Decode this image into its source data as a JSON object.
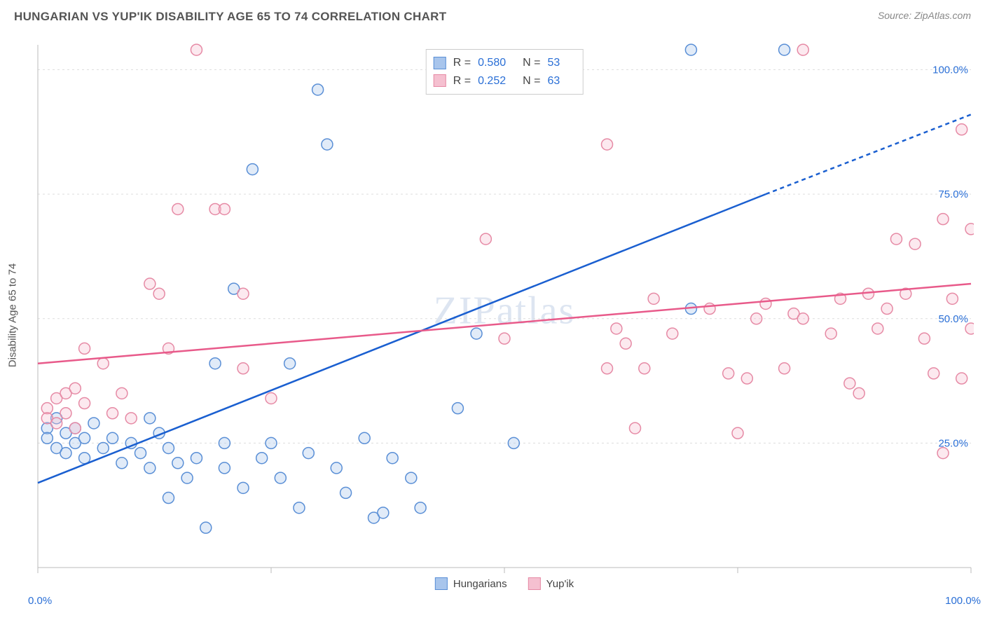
{
  "title": "HUNGARIAN VS YUP'IK DISABILITY AGE 65 TO 74 CORRELATION CHART",
  "source": "Source: ZipAtlas.com",
  "y_axis_label": "Disability Age 65 to 74",
  "watermark": "ZIPatlas",
  "chart": {
    "type": "scatter",
    "xlim": [
      0,
      100
    ],
    "ylim": [
      0,
      105
    ],
    "x_ticks": [
      0,
      100
    ],
    "x_tick_labels": [
      "0.0%",
      "100.0%"
    ],
    "y_ticks": [
      25,
      50,
      75,
      100
    ],
    "y_tick_labels": [
      "25.0%",
      "50.0%",
      "75.0%",
      "100.0%"
    ],
    "grid_color": "#dddddd",
    "axis_color": "#bbbbbb",
    "background_color": "#ffffff",
    "marker_radius": 8,
    "marker_stroke_width": 1.5,
    "marker_fill_opacity": 0.35,
    "line_width": 2.5,
    "dash_pattern": "6,5"
  },
  "series": [
    {
      "name": "Hungarians",
      "color_stroke": "#5a8fd6",
      "color_fill": "#a8c5ec",
      "line_color": "#1a5fd0",
      "stats": {
        "R": "0.580",
        "N": "53"
      },
      "trend": {
        "x1": 0,
        "y1": 17,
        "x2": 78,
        "y2": 75,
        "x2_dash": 100,
        "y2_dash": 91
      },
      "points": [
        [
          1,
          28
        ],
        [
          1,
          26
        ],
        [
          2,
          30
        ],
        [
          2,
          24
        ],
        [
          3,
          27
        ],
        [
          3,
          23
        ],
        [
          4,
          25
        ],
        [
          4,
          28
        ],
        [
          5,
          26
        ],
        [
          5,
          22
        ],
        [
          6,
          29
        ],
        [
          7,
          24
        ],
        [
          8,
          26
        ],
        [
          9,
          21
        ],
        [
          10,
          25
        ],
        [
          11,
          23
        ],
        [
          12,
          20
        ],
        [
          13,
          27
        ],
        [
          14,
          24
        ],
        [
          15,
          21
        ],
        [
          12,
          30
        ],
        [
          14,
          14
        ],
        [
          16,
          18
        ],
        [
          17,
          22
        ],
        [
          18,
          8
        ],
        [
          19,
          41
        ],
        [
          20,
          25
        ],
        [
          20,
          20
        ],
        [
          21,
          56
        ],
        [
          22,
          16
        ],
        [
          23,
          80
        ],
        [
          24,
          22
        ],
        [
          25,
          25
        ],
        [
          26,
          18
        ],
        [
          27,
          41
        ],
        [
          28,
          12
        ],
        [
          29,
          23
        ],
        [
          30,
          96
        ],
        [
          31,
          85
        ],
        [
          32,
          20
        ],
        [
          33,
          15
        ],
        [
          35,
          26
        ],
        [
          36,
          10
        ],
        [
          37,
          11
        ],
        [
          38,
          22
        ],
        [
          40,
          18
        ],
        [
          41,
          12
        ],
        [
          45,
          32
        ],
        [
          47,
          47
        ],
        [
          51,
          25
        ],
        [
          70,
          52
        ],
        [
          70,
          104
        ],
        [
          80,
          104
        ]
      ]
    },
    {
      "name": "Yup'ik",
      "color_stroke": "#e68aa5",
      "color_fill": "#f5c0d0",
      "line_color": "#e85a8a",
      "stats": {
        "R": "0.252",
        "N": "63"
      },
      "trend": {
        "x1": 0,
        "y1": 41,
        "x2": 100,
        "y2": 57
      },
      "points": [
        [
          1,
          32
        ],
        [
          1,
          30
        ],
        [
          2,
          34
        ],
        [
          2,
          29
        ],
        [
          3,
          35
        ],
        [
          3,
          31
        ],
        [
          4,
          36
        ],
        [
          4,
          28
        ],
        [
          5,
          33
        ],
        [
          5,
          44
        ],
        [
          7,
          41
        ],
        [
          8,
          31
        ],
        [
          9,
          35
        ],
        [
          10,
          30
        ],
        [
          12,
          57
        ],
        [
          13,
          55
        ],
        [
          14,
          44
        ],
        [
          15,
          72
        ],
        [
          19,
          72
        ],
        [
          20,
          72
        ],
        [
          17,
          104
        ],
        [
          22,
          40
        ],
        [
          22,
          55
        ],
        [
          25,
          34
        ],
        [
          48,
          66
        ],
        [
          50,
          46
        ],
        [
          61,
          85
        ],
        [
          61,
          40
        ],
        [
          62,
          48
        ],
        [
          63,
          45
        ],
        [
          64,
          28
        ],
        [
          65,
          40
        ],
        [
          66,
          54
        ],
        [
          68,
          47
        ],
        [
          72,
          52
        ],
        [
          74,
          39
        ],
        [
          75,
          27
        ],
        [
          76,
          38
        ],
        [
          77,
          50
        ],
        [
          78,
          53
        ],
        [
          80,
          40
        ],
        [
          81,
          51
        ],
        [
          82,
          50
        ],
        [
          82,
          104
        ],
        [
          85,
          47
        ],
        [
          86,
          54
        ],
        [
          87,
          37
        ],
        [
          88,
          35
        ],
        [
          89,
          55
        ],
        [
          90,
          48
        ],
        [
          91,
          52
        ],
        [
          92,
          66
        ],
        [
          93,
          55
        ],
        [
          94,
          65
        ],
        [
          95,
          46
        ],
        [
          96,
          39
        ],
        [
          97,
          70
        ],
        [
          97,
          23
        ],
        [
          98,
          54
        ],
        [
          99,
          38
        ],
        [
          99,
          88
        ],
        [
          100,
          48
        ],
        [
          100,
          68
        ]
      ]
    }
  ],
  "legend_series": [
    {
      "label": "Hungarians",
      "swatch_fill": "#a8c5ec",
      "swatch_stroke": "#5a8fd6"
    },
    {
      "label": "Yup'ik",
      "swatch_fill": "#f5c0d0",
      "swatch_stroke": "#e68aa5"
    }
  ]
}
